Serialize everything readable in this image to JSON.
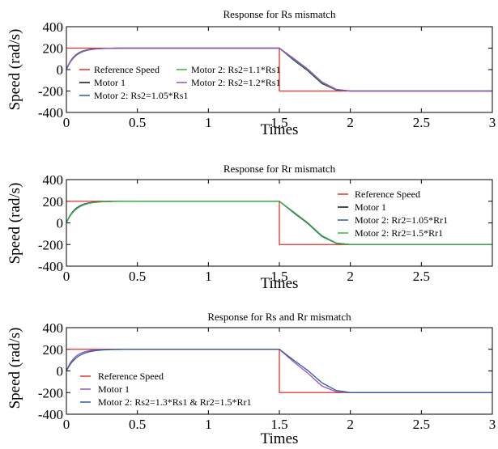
{
  "chart_data": [
    {
      "type": "line",
      "title": "Response for Rs mismatch",
      "xlabel": "Times",
      "ylabel": "Speed (rad/s)",
      "xlim": [
        0,
        3
      ],
      "ylim": [
        -400,
        400
      ],
      "xticks": [
        0,
        0.5,
        1,
        1.5,
        2,
        2.5,
        3
      ],
      "xtick_labels": [
        "0",
        "0.5",
        "1",
        "1.5",
        "2",
        "2.5",
        "3"
      ],
      "yticks": [
        400,
        200,
        0,
        -200,
        -400
      ],
      "ytick_labels": [
        "400",
        "200",
        "0",
        "-200",
        "-400"
      ],
      "grid": false,
      "legend": "inside-left",
      "series": [
        {
          "name": "Reference Speed",
          "color": "#e8302a",
          "tau": 0,
          "x": [
            0,
            1.5,
            1.5,
            3
          ],
          "y": [
            200,
            200,
            -200,
            -200
          ]
        },
        {
          "name": "Motor 1",
          "color": "#111111",
          "tau": 0.058,
          "x": [
            0,
            0.05,
            0.1,
            0.15,
            0.2,
            0.3,
            1.5,
            1.6,
            1.7,
            1.8,
            1.9,
            2.0,
            3.0
          ],
          "y": [
            0,
            116,
            169,
            188,
            195,
            200,
            200,
            90,
            -10,
            -130,
            -190,
            -200,
            -200
          ]
        },
        {
          "name": "Motor 2: Rs2=1.05*Rs1",
          "color": "#2f5c9b",
          "tau": 0.06,
          "x": [
            0,
            0.05,
            0.1,
            0.15,
            0.2,
            0.3,
            1.5,
            1.6,
            1.7,
            1.8,
            1.9,
            2.0,
            3.0
          ],
          "y": [
            0,
            113,
            167,
            187,
            195,
            200,
            200,
            95,
            -5,
            -125,
            -188,
            -200,
            -200
          ]
        },
        {
          "name": "Motor 2: Rs2=1.1*Rs1",
          "color": "#3cb43c",
          "tau": 0.062,
          "x": [
            0,
            0.05,
            0.1,
            0.15,
            0.2,
            0.3,
            1.5,
            1.6,
            1.7,
            1.8,
            1.9,
            2.0,
            3.0
          ],
          "y": [
            0,
            111,
            165,
            186,
            194,
            200,
            200,
            100,
            0,
            -120,
            -186,
            -200,
            -200
          ]
        },
        {
          "name": "Motor 2: Rs2=1.2*Rs1",
          "color": "#9b4fc2",
          "tau": 0.065,
          "x": [
            0,
            0.05,
            0.1,
            0.15,
            0.2,
            0.3,
            1.5,
            1.6,
            1.7,
            1.8,
            1.9,
            2.0,
            3.0
          ],
          "y": [
            0,
            108,
            162,
            184,
            194,
            200,
            200,
            105,
            5,
            -115,
            -184,
            -200,
            -200
          ]
        }
      ]
    },
    {
      "type": "line",
      "title": "Response for Rr mismatch",
      "xlabel": "Times",
      "ylabel": "Speed (rad/s)",
      "xlim": [
        0,
        3
      ],
      "ylim": [
        -400,
        400
      ],
      "xticks": [
        0,
        0.5,
        1,
        1.5,
        2,
        2.5
      ],
      "xtick_labels": [
        "0",
        "0.5",
        "1",
        "1.5",
        "2",
        "2.5"
      ],
      "yticks": [
        400,
        200,
        0,
        -200,
        -400
      ],
      "ytick_labels": [
        "400",
        "200",
        "0",
        "-200",
        "-400"
      ],
      "grid": false,
      "legend": "right",
      "series": [
        {
          "name": "Reference Speed",
          "color": "#e8302a",
          "tau": 0,
          "x": [
            0,
            1.5,
            1.5,
            3
          ],
          "y": [
            200,
            200,
            -200,
            -200
          ]
        },
        {
          "name": "Motor 1",
          "color": "#111111",
          "tau": 0.062,
          "x": [
            0,
            0.05,
            0.1,
            0.15,
            0.2,
            0.3,
            1.5,
            1.6,
            1.7,
            1.8,
            1.9,
            2.0,
            3.0
          ],
          "y": [
            0,
            111,
            165,
            186,
            194,
            200,
            200,
            95,
            -5,
            -125,
            -188,
            -200,
            -200
          ]
        },
        {
          "name": "Motor 2: Rr2=1.05*Rr1",
          "color": "#2f5c9b",
          "tau": 0.064,
          "x": [
            0,
            0.05,
            0.1,
            0.15,
            0.2,
            0.3,
            1.5,
            1.6,
            1.7,
            1.8,
            1.9,
            2.0,
            3.0
          ],
          "y": [
            0,
            109,
            163,
            185,
            194,
            200,
            200,
            97,
            -3,
            -123,
            -187,
            -200,
            -200
          ]
        },
        {
          "name": "Motor 2: Rr2=1.5*Rr1",
          "color": "#3cb43c",
          "tau": 0.07,
          "x": [
            0,
            0.05,
            0.1,
            0.15,
            0.2,
            0.3,
            1.5,
            1.6,
            1.7,
            1.8,
            1.9,
            2.0,
            3.0
          ],
          "y": [
            0,
            102,
            157,
            181,
            192,
            200,
            200,
            102,
            2,
            -118,
            -185,
            -200,
            -200
          ]
        }
      ]
    },
    {
      "type": "line",
      "title": "Response for Rs and Rr mismatch",
      "xlabel": "Times",
      "ylabel": "Speed (rad/s)",
      "xlim": [
        0,
        3
      ],
      "ylim": [
        -400,
        400
      ],
      "xticks": [
        0,
        0.5,
        1,
        1.5,
        2,
        2.5,
        3
      ],
      "xtick_labels": [
        "0",
        "0.5",
        "1",
        "1.5",
        "2",
        "2.5",
        "3"
      ],
      "yticks": [
        400,
        200,
        0,
        -200,
        -400
      ],
      "ytick_labels": [
        "400",
        "200",
        "0",
        "-200",
        "-400"
      ],
      "grid": false,
      "legend": "bottom-left",
      "series": [
        {
          "name": "Reference Speed",
          "color": "#e8302a",
          "tau": 0,
          "x": [
            0,
            1.5,
            1.5,
            3
          ],
          "y": [
            200,
            200,
            -200,
            -200
          ]
        },
        {
          "name": "Motor 1",
          "color": "#9b4fc2",
          "tau": 0.06,
          "x": [
            0,
            0.05,
            0.1,
            0.15,
            0.2,
            0.3,
            1.5,
            1.6,
            1.7,
            1.8,
            1.9,
            2.0,
            3.0
          ],
          "y": [
            0,
            113,
            167,
            187,
            195,
            200,
            200,
            85,
            -20,
            -140,
            -192,
            -200,
            -200
          ]
        },
        {
          "name": "Motor 2: Rs2=1.3*Rs1 & Rr2=1.5*Rr1",
          "color": "#2f5c9b",
          "tau": 0.075,
          "x": [
            0,
            0.05,
            0.1,
            0.15,
            0.2,
            0.3,
            1.5,
            1.6,
            1.7,
            1.8,
            1.9,
            2.0,
            3.0
          ],
          "y": [
            0,
            97,
            150,
            177,
            190,
            200,
            200,
            100,
            5,
            -110,
            -180,
            -200,
            -200
          ]
        }
      ]
    }
  ]
}
